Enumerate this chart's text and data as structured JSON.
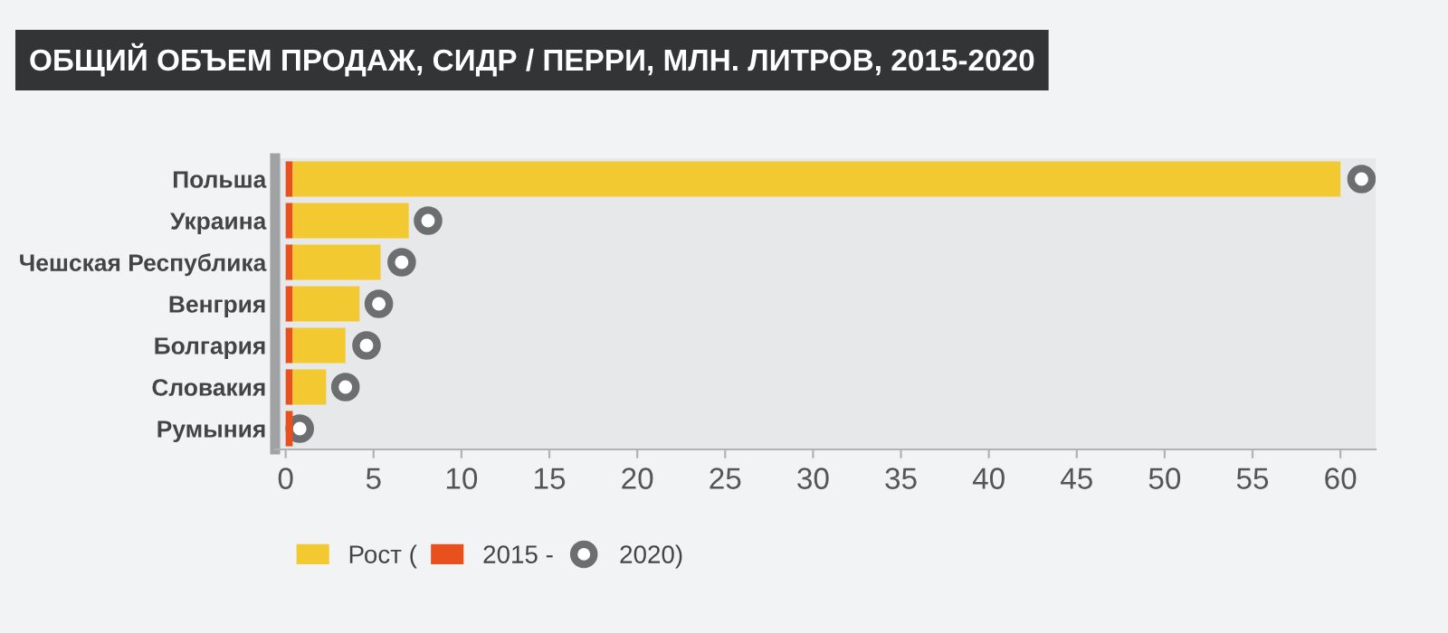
{
  "chart_data": {
    "type": "bar",
    "orientation": "horizontal",
    "stacked": true,
    "title": "ОБЩИЙ ОБЪЕМ ПРОДАЖ, СИДР / ПЕРРИ, МЛН. ЛИТРОВ, 2015-2020",
    "categories": [
      "Польша",
      "Украина",
      "Чешская Республика",
      "Венгрия",
      "Болгария",
      "Словакия",
      "Румыния"
    ],
    "series": [
      {
        "name": "2015 -",
        "color": "#e8501e",
        "values": [
          0.4,
          0.4,
          0.4,
          0.4,
          0.4,
          0.4,
          0.4
        ]
      },
      {
        "name": "Рост (",
        "color": "#f2c930",
        "values": [
          59.6,
          6.6,
          5.0,
          3.8,
          3.0,
          1.9,
          0
        ]
      },
      {
        "name": "2020)",
        "type": "scatter",
        "color": "#6d6e70",
        "marker": "circle",
        "values": [
          61.2,
          8.1,
          6.6,
          5.3,
          4.6,
          3.4,
          0.8
        ]
      }
    ],
    "xlim": [
      -0.6,
      62
    ],
    "xticks": [
      0,
      5,
      10,
      15,
      20,
      25,
      30,
      35,
      40,
      45,
      50,
      55,
      60
    ],
    "grid": false,
    "legend": "bottom left"
  }
}
